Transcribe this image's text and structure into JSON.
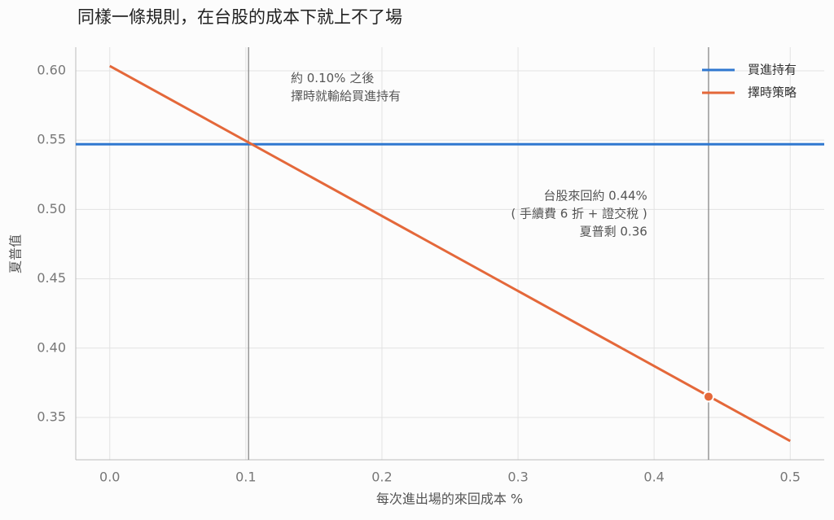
{
  "chart_data": {
    "type": "line",
    "title": "同樣一條規則，在台股的成本下就上不了場",
    "x_label": "每次進出場的來回成本 %",
    "y_label": "夏普值",
    "xlim": [
      -0.025,
      0.525
    ],
    "ylim": [
      0.3195,
      0.617
    ],
    "xticks": [
      {
        "value": 0,
        "label": "0.0"
      },
      0.1,
      0.2,
      0.3,
      0.4,
      0.5
    ],
    "yticks": [
      0.35,
      {
        "value": 0.4,
        "label": "0.40"
      },
      0.45,
      {
        "value": 0.5,
        "label": "0.50"
      },
      0.55,
      {
        "value": 0.6,
        "label": "0.60"
      }
    ],
    "grid": true,
    "legend": "upper right",
    "series": [
      {
        "name": "買進持有",
        "color": "#2f78d0",
        "hline": 0.547
      },
      {
        "name": "擇時策略",
        "color": "#e4683a",
        "x": [
          0,
          0.5
        ],
        "values": [
          0.6035,
          0.333
        ]
      }
    ],
    "vlines": [
      0.102,
      0.44
    ],
    "marker": {
      "x": 0.44,
      "y": 0.365,
      "color": "#e4683a"
    },
    "annotations": [
      {
        "lines": [
          "約 0.10% 之後",
          "擇時就輸給買進持有"
        ],
        "x": 0.133,
        "y": 0.5945,
        "align": "left"
      },
      {
        "lines": [
          "台股來回約 0.44%",
          "( 手續費 6 折 + 證交稅 )",
          "夏普剩 0.36"
        ],
        "x": 0.395,
        "y": 0.5095,
        "align": "right"
      }
    ]
  }
}
